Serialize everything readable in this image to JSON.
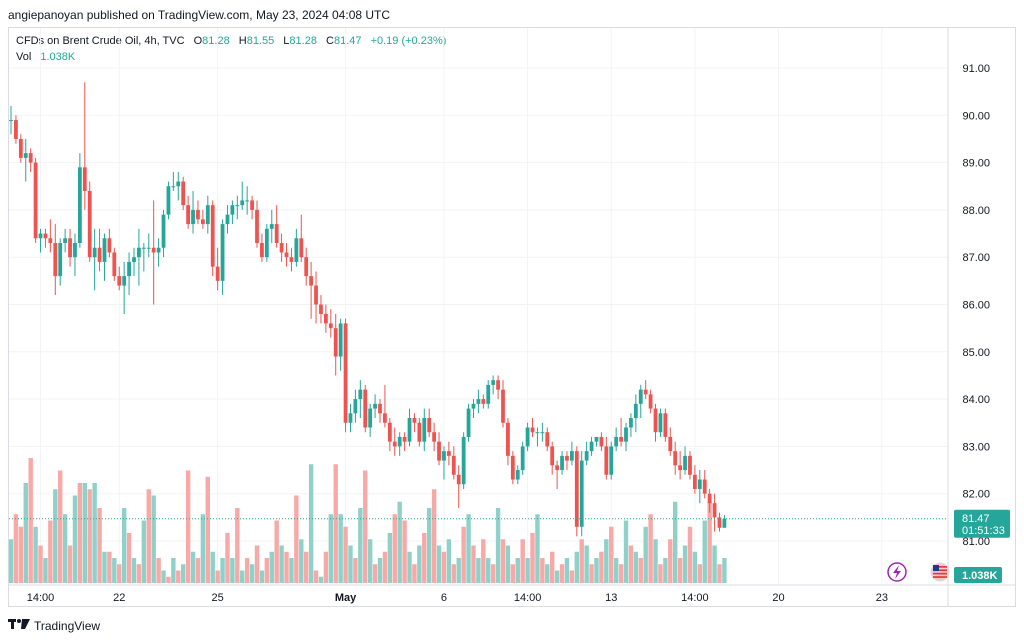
{
  "header": {
    "text": "angiepanoyan published on TradingView.com, May 23, 2024 04:08 UTC"
  },
  "legend": {
    "symbol": "CFDs on Brent Crude Oil, 4h, TVC",
    "o_label": "O",
    "o": "81.28",
    "h_label": "H",
    "h": "81.55",
    "l_label": "L",
    "l": "81.28",
    "c_label": "C",
    "c": "81.47",
    "change": "+0.19 (+0.23%)",
    "vol_label": "Vol",
    "vol": "1.038K"
  },
  "footer": {
    "brand": "TradingView"
  },
  "colors": {
    "up": "#26a69a",
    "down": "#ef5350",
    "vol_up": "#8fd1c9",
    "vol_down": "#f6a9a7",
    "grid": "#f2f3f5",
    "axis_text": "#131722"
  },
  "chart_data": {
    "type": "candlestick",
    "title": "CFDs on Brent Crude Oil, 4h, TVC",
    "y_axis": {
      "side": "right",
      "ticks": [
        "91.00",
        "90.00",
        "89.00",
        "88.00",
        "87.00",
        "86.00",
        "85.00",
        "84.00",
        "83.00",
        "82.00",
        "81.00"
      ],
      "range": [
        80.2,
        91.5
      ]
    },
    "x_axis": {
      "ticks": [
        {
          "label": "14:00",
          "index": 6
        },
        {
          "label": "22",
          "index": 22
        },
        {
          "label": "25",
          "index": 42
        },
        {
          "label": "May",
          "index": 68
        },
        {
          "label": "6",
          "index": 88
        },
        {
          "label": "14:00",
          "index": 105
        },
        {
          "label": "13",
          "index": 122
        },
        {
          "label": "14:00",
          "index": 139
        },
        {
          "label": "20",
          "index": 156
        },
        {
          "label": "23",
          "index": 177
        }
      ]
    },
    "last_price": {
      "price": "81.47",
      "countdown": "01:51:33"
    },
    "volume_label": "1.038K",
    "candles": [
      [
        89.9,
        90.2,
        89.6,
        89.9
      ],
      [
        89.9,
        90.0,
        89.4,
        89.5
      ],
      [
        89.5,
        89.6,
        89.0,
        89.1
      ],
      [
        89.1,
        89.5,
        88.6,
        89.2
      ],
      [
        89.2,
        89.3,
        88.8,
        89.0
      ],
      [
        89.0,
        89.1,
        87.3,
        87.4
      ],
      [
        87.4,
        87.6,
        87.1,
        87.5
      ],
      [
        87.5,
        87.6,
        87.2,
        87.4
      ],
      [
        87.4,
        87.8,
        87.1,
        87.3
      ],
      [
        87.3,
        87.7,
        86.2,
        86.6
      ],
      [
        86.6,
        87.4,
        86.4,
        87.3
      ],
      [
        87.3,
        87.6,
        87.1,
        87.4
      ],
      [
        87.4,
        87.6,
        86.8,
        87.0
      ],
      [
        87.0,
        87.5,
        86.6,
        87.3
      ],
      [
        87.3,
        89.2,
        87.2,
        88.9
      ],
      [
        88.9,
        90.7,
        88.0,
        88.4
      ],
      [
        88.4,
        88.6,
        86.9,
        87.0
      ],
      [
        87.0,
        87.6,
        86.3,
        87.2
      ],
      [
        87.2,
        87.6,
        86.7,
        86.9
      ],
      [
        86.9,
        87.5,
        86.5,
        87.4
      ],
      [
        87.4,
        87.6,
        87.0,
        87.1
      ],
      [
        87.1,
        87.2,
        86.5,
        86.6
      ],
      [
        86.6,
        86.8,
        86.3,
        86.4
      ],
      [
        86.4,
        86.9,
        85.8,
        86.6
      ],
      [
        86.6,
        87.1,
        86.2,
        86.9
      ],
      [
        86.9,
        87.2,
        86.6,
        87.0
      ],
      [
        87.0,
        87.6,
        86.4,
        87.2
      ],
      [
        87.2,
        87.3,
        86.7,
        87.2
      ],
      [
        87.2,
        87.5,
        87.0,
        87.2
      ],
      [
        87.2,
        88.2,
        86.0,
        87.1
      ],
      [
        87.1,
        87.4,
        86.8,
        87.2
      ],
      [
        87.2,
        88.0,
        87.0,
        87.9
      ],
      [
        87.9,
        88.6,
        87.8,
        88.5
      ],
      [
        88.5,
        88.8,
        88.4,
        88.5
      ],
      [
        88.5,
        88.8,
        88.2,
        88.6
      ],
      [
        88.6,
        88.7,
        88.0,
        88.1
      ],
      [
        88.1,
        88.3,
        87.6,
        87.7
      ],
      [
        87.7,
        88.4,
        87.5,
        88.0
      ],
      [
        88.0,
        88.2,
        87.7,
        87.8
      ],
      [
        87.8,
        88.0,
        87.6,
        87.7
      ],
      [
        87.7,
        88.3,
        87.5,
        88.1
      ],
      [
        88.1,
        88.2,
        86.6,
        86.8
      ],
      [
        86.8,
        87.2,
        86.3,
        86.5
      ],
      [
        86.5,
        87.8,
        86.2,
        87.7
      ],
      [
        87.7,
        88.1,
        87.5,
        87.9
      ],
      [
        87.9,
        88.2,
        87.7,
        88.1
      ],
      [
        88.1,
        88.3,
        87.8,
        88.1
      ],
      [
        88.1,
        88.6,
        88.0,
        88.2
      ],
      [
        88.2,
        88.5,
        87.9,
        88.2
      ],
      [
        88.2,
        88.3,
        87.8,
        88.0
      ],
      [
        88.0,
        88.2,
        87.2,
        87.3
      ],
      [
        87.3,
        87.5,
        86.9,
        87.0
      ],
      [
        87.0,
        87.7,
        86.9,
        87.6
      ],
      [
        87.6,
        88.0,
        87.3,
        87.7
      ],
      [
        87.7,
        88.1,
        87.2,
        87.3
      ],
      [
        87.3,
        87.5,
        86.9,
        87.1
      ],
      [
        87.1,
        87.3,
        86.8,
        87.0
      ],
      [
        87.0,
        87.2,
        86.7,
        86.9
      ],
      [
        86.9,
        87.6,
        86.8,
        87.4
      ],
      [
        87.4,
        87.9,
        86.9,
        87.0
      ],
      [
        87.0,
        87.2,
        86.4,
        86.6
      ],
      [
        86.6,
        86.9,
        85.7,
        86.4
      ],
      [
        86.4,
        86.7,
        85.6,
        86.0
      ],
      [
        86.0,
        86.2,
        85.6,
        85.8
      ],
      [
        85.8,
        86.0,
        85.4,
        85.6
      ],
      [
        85.6,
        85.9,
        85.3,
        85.5
      ],
      [
        85.5,
        85.8,
        84.5,
        84.9
      ],
      [
        84.9,
        85.7,
        84.6,
        85.6
      ],
      [
        85.6,
        85.7,
        83.3,
        83.5
      ],
      [
        83.5,
        83.9,
        83.3,
        83.7
      ],
      [
        83.7,
        84.2,
        83.5,
        84.0
      ],
      [
        84.0,
        84.4,
        83.6,
        84.2
      ],
      [
        84.2,
        84.3,
        83.3,
        83.4
      ],
      [
        83.4,
        83.9,
        83.2,
        83.8
      ],
      [
        83.8,
        84.1,
        83.6,
        83.9
      ],
      [
        83.9,
        84.0,
        83.5,
        83.7
      ],
      [
        83.7,
        84.3,
        83.4,
        83.5
      ],
      [
        83.5,
        83.6,
        82.9,
        83.1
      ],
      [
        83.1,
        83.4,
        82.8,
        83.0
      ],
      [
        83.0,
        83.3,
        82.8,
        83.2
      ],
      [
        83.2,
        83.3,
        82.9,
        83.1
      ],
      [
        83.1,
        83.8,
        83.0,
        83.6
      ],
      [
        83.6,
        83.7,
        83.3,
        83.5
      ],
      [
        83.5,
        83.6,
        83.0,
        83.1
      ],
      [
        83.1,
        83.8,
        82.9,
        83.6
      ],
      [
        83.6,
        83.8,
        83.2,
        83.3
      ],
      [
        83.3,
        83.5,
        82.9,
        83.1
      ],
      [
        83.1,
        83.3,
        82.6,
        82.7
      ],
      [
        82.7,
        83.0,
        82.3,
        82.9
      ],
      [
        82.9,
        83.1,
        82.6,
        82.8
      ],
      [
        82.8,
        83.0,
        82.3,
        82.4
      ],
      [
        82.4,
        82.6,
        81.7,
        82.2
      ],
      [
        82.2,
        83.3,
        82.1,
        83.2
      ],
      [
        83.2,
        83.9,
        83.1,
        83.8
      ],
      [
        83.8,
        84.0,
        83.6,
        83.9
      ],
      [
        83.9,
        84.2,
        83.7,
        84.0
      ],
      [
        84.0,
        84.1,
        83.8,
        83.9
      ],
      [
        83.9,
        84.4,
        83.8,
        84.3
      ],
      [
        84.3,
        84.5,
        84.1,
        84.4
      ],
      [
        84.4,
        84.5,
        84.0,
        84.2
      ],
      [
        84.2,
        84.4,
        83.4,
        83.5
      ],
      [
        83.5,
        83.6,
        82.6,
        82.8
      ],
      [
        82.8,
        82.9,
        82.2,
        82.3
      ],
      [
        82.3,
        82.6,
        82.2,
        82.5
      ],
      [
        82.5,
        83.1,
        82.4,
        83.0
      ],
      [
        83.0,
        83.5,
        82.9,
        83.4
      ],
      [
        83.4,
        83.6,
        83.2,
        83.3
      ],
      [
        83.3,
        83.4,
        83.0,
        83.3
      ],
      [
        83.3,
        83.5,
        83.1,
        83.3
      ],
      [
        83.3,
        83.4,
        82.9,
        83.0
      ],
      [
        83.0,
        83.1,
        82.4,
        82.6
      ],
      [
        82.6,
        82.7,
        82.1,
        82.5
      ],
      [
        82.5,
        82.9,
        82.4,
        82.8
      ],
      [
        82.8,
        82.9,
        82.5,
        82.7
      ],
      [
        82.7,
        83.1,
        82.6,
        82.9
      ],
      [
        82.9,
        83.0,
        81.1,
        81.3
      ],
      [
        81.3,
        82.9,
        81.1,
        82.7
      ],
      [
        82.7,
        83.1,
        82.6,
        82.9
      ],
      [
        82.9,
        83.2,
        82.8,
        83.1
      ],
      [
        83.1,
        83.2,
        83.0,
        83.2
      ],
      [
        83.2,
        83.3,
        82.9,
        83.0
      ],
      [
        83.0,
        83.2,
        82.3,
        82.4
      ],
      [
        82.4,
        83.1,
        82.3,
        83.0
      ],
      [
        83.0,
        83.4,
        82.9,
        83.2
      ],
      [
        83.2,
        83.6,
        83.0,
        83.1
      ],
      [
        83.1,
        83.5,
        82.9,
        83.4
      ],
      [
        83.4,
        83.7,
        83.2,
        83.6
      ],
      [
        83.6,
        84.1,
        83.3,
        83.9
      ],
      [
        83.9,
        84.3,
        83.6,
        84.2
      ],
      [
        84.2,
        84.4,
        84.0,
        84.1
      ],
      [
        84.1,
        84.2,
        83.7,
        83.8
      ],
      [
        83.8,
        83.9,
        83.1,
        83.3
      ],
      [
        83.3,
        83.8,
        83.2,
        83.7
      ],
      [
        83.7,
        83.8,
        83.1,
        83.2
      ],
      [
        83.2,
        83.4,
        82.8,
        82.9
      ],
      [
        82.9,
        83.1,
        82.4,
        82.6
      ],
      [
        82.6,
        82.9,
        82.3,
        82.5
      ],
      [
        82.5,
        83.0,
        82.4,
        82.8
      ],
      [
        82.8,
        82.9,
        82.3,
        82.4
      ],
      [
        82.4,
        82.6,
        82.0,
        82.1
      ],
      [
        82.1,
        82.5,
        81.8,
        82.3
      ],
      [
        82.3,
        82.5,
        81.9,
        82.0
      ],
      [
        82.0,
        82.1,
        81.6,
        81.8
      ],
      [
        81.8,
        82.0,
        81.2,
        81.5
      ],
      [
        81.5,
        81.6,
        81.2,
        81.28
      ],
      [
        81.28,
        81.55,
        81.28,
        81.47
      ]
    ],
    "volumes": [
      [
        0.35,
        1
      ],
      [
        0.55,
        0
      ],
      [
        0.45,
        0
      ],
      [
        0.8,
        1
      ],
      [
        1.0,
        0
      ],
      [
        0.45,
        1
      ],
      [
        0.3,
        0
      ],
      [
        0.2,
        1
      ],
      [
        0.5,
        0
      ],
      [
        0.75,
        1
      ],
      [
        0.9,
        0
      ],
      [
        0.55,
        1
      ],
      [
        0.3,
        0
      ],
      [
        0.7,
        1
      ],
      [
        0.8,
        0
      ],
      [
        0.8,
        1
      ],
      [
        0.75,
        0
      ],
      [
        0.8,
        1
      ],
      [
        0.6,
        0
      ],
      [
        0.25,
        1
      ],
      [
        0.25,
        0
      ],
      [
        0.2,
        1
      ],
      [
        0.15,
        0
      ],
      [
        0.6,
        1
      ],
      [
        0.4,
        0
      ],
      [
        0.2,
        1
      ],
      [
        0.15,
        0
      ],
      [
        0.5,
        1
      ],
      [
        0.75,
        0
      ],
      [
        0.7,
        1
      ],
      [
        0.2,
        0
      ],
      [
        0.1,
        1
      ],
      [
        0.05,
        0
      ],
      [
        0.2,
        1
      ],
      [
        0.1,
        0
      ],
      [
        0.15,
        1
      ],
      [
        0.9,
        0
      ],
      [
        0.25,
        1
      ],
      [
        0.2,
        0
      ],
      [
        0.55,
        1
      ],
      [
        0.85,
        0
      ],
      [
        0.25,
        1
      ],
      [
        0.1,
        0
      ],
      [
        0.2,
        1
      ],
      [
        0.4,
        0
      ],
      [
        0.2,
        1
      ],
      [
        0.6,
        0
      ],
      [
        0.1,
        1
      ],
      [
        0.2,
        0
      ],
      [
        0.15,
        1
      ],
      [
        0.3,
        0
      ],
      [
        0.1,
        1
      ],
      [
        0.2,
        0
      ],
      [
        0.25,
        1
      ],
      [
        0.5,
        0
      ],
      [
        0.3,
        1
      ],
      [
        0.25,
        0
      ],
      [
        0.2,
        1
      ],
      [
        0.7,
        0
      ],
      [
        0.35,
        1
      ],
      [
        0.25,
        0
      ],
      [
        0.95,
        1
      ],
      [
        0.1,
        0
      ],
      [
        0.05,
        1
      ],
      [
        0.25,
        0
      ],
      [
        0.55,
        1
      ],
      [
        0.95,
        0
      ],
      [
        0.55,
        1
      ],
      [
        0.45,
        0
      ],
      [
        0.3,
        1
      ],
      [
        0.2,
        0
      ],
      [
        0.6,
        1
      ],
      [
        0.9,
        0
      ],
      [
        0.35,
        1
      ],
      [
        0.15,
        0
      ],
      [
        0.2,
        1
      ],
      [
        0.25,
        0
      ],
      [
        0.4,
        1
      ],
      [
        0.55,
        0
      ],
      [
        0.65,
        1
      ],
      [
        0.5,
        0
      ],
      [
        0.25,
        1
      ],
      [
        0.15,
        0
      ],
      [
        0.3,
        1
      ],
      [
        0.4,
        0
      ],
      [
        0.6,
        1
      ],
      [
        0.75,
        0
      ],
      [
        0.3,
        1
      ],
      [
        0.25,
        0
      ],
      [
        0.35,
        1
      ],
      [
        0.15,
        0
      ],
      [
        0.2,
        1
      ],
      [
        0.45,
        0
      ],
      [
        0.55,
        1
      ],
      [
        0.3,
        0
      ],
      [
        0.2,
        1
      ],
      [
        0.35,
        0
      ],
      [
        0.2,
        1
      ],
      [
        0.15,
        0
      ],
      [
        0.6,
        1
      ],
      [
        0.35,
        0
      ],
      [
        0.3,
        1
      ],
      [
        0.15,
        0
      ],
      [
        0.2,
        1
      ],
      [
        0.35,
        0
      ],
      [
        0.2,
        1
      ],
      [
        0.4,
        0
      ],
      [
        0.55,
        1
      ],
      [
        0.2,
        0
      ],
      [
        0.15,
        1
      ],
      [
        0.25,
        0
      ],
      [
        0.1,
        1
      ],
      [
        0.15,
        0
      ],
      [
        0.2,
        1
      ],
      [
        0.1,
        0
      ],
      [
        0.25,
        1
      ],
      [
        0.35,
        0
      ],
      [
        0.3,
        1
      ],
      [
        0.15,
        0
      ],
      [
        0.2,
        1
      ],
      [
        0.25,
        0
      ],
      [
        0.35,
        1
      ],
      [
        0.45,
        0
      ],
      [
        0.2,
        1
      ],
      [
        0.15,
        0
      ],
      [
        0.5,
        1
      ],
      [
        0.3,
        0
      ],
      [
        0.25,
        1
      ],
      [
        0.2,
        0
      ],
      [
        0.45,
        1
      ],
      [
        0.55,
        0
      ],
      [
        0.35,
        1
      ],
      [
        0.15,
        0
      ],
      [
        0.2,
        1
      ],
      [
        0.35,
        0
      ],
      [
        0.65,
        1
      ],
      [
        0.2,
        0
      ],
      [
        0.3,
        1
      ],
      [
        0.45,
        0
      ],
      [
        0.25,
        1
      ],
      [
        0.15,
        0
      ],
      [
        0.5,
        1
      ],
      [
        0.65,
        0
      ],
      [
        0.3,
        1
      ],
      [
        0.15,
        0
      ],
      [
        0.2,
        1
      ]
    ]
  }
}
